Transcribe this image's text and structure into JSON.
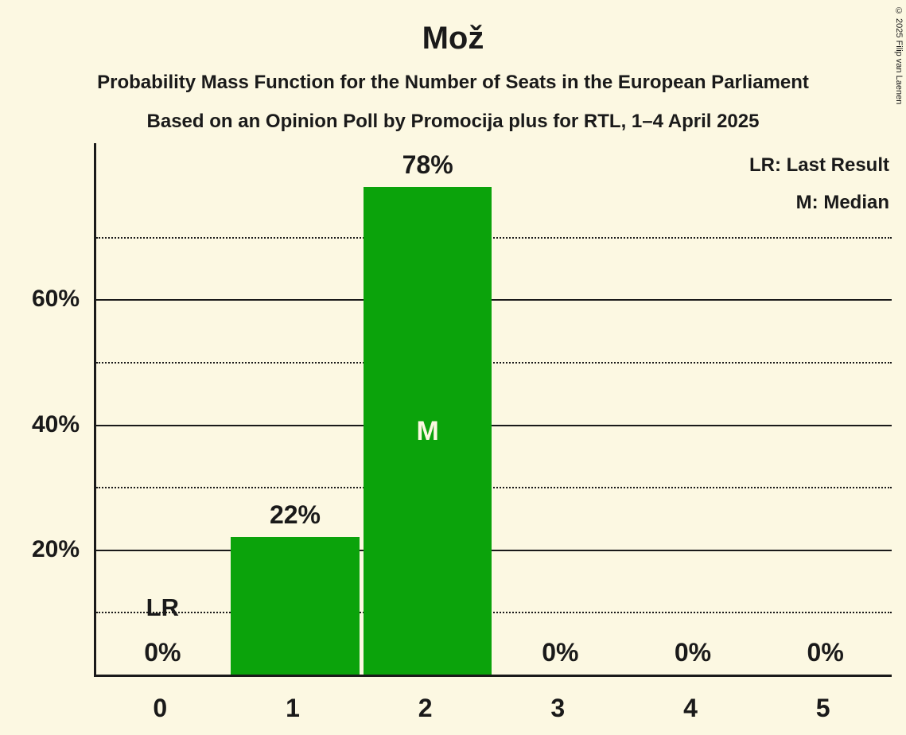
{
  "page": {
    "title": "Mož",
    "subtitle1": "Probability Mass Function for the Number of Seats in the European Parliament",
    "subtitle2": "Based on an Opinion Poll by Promocija plus for RTL, 1–4 April 2025",
    "copyright": "© 2025 Filip van Laenen"
  },
  "legend": {
    "lr": "LR: Last Result",
    "m": "M: Median"
  },
  "colors": {
    "background": "#FCF8E2",
    "bar": "#0BA30B",
    "text": "#1A1A1A"
  },
  "chart_data": {
    "type": "bar",
    "title": "Mož",
    "categories": [
      "0",
      "1",
      "2",
      "3",
      "4",
      "5"
    ],
    "values": [
      0,
      22,
      78,
      0,
      0,
      0
    ],
    "value_labels": [
      "0%",
      "22%",
      "78%",
      "0%",
      "0%",
      "0%"
    ],
    "ylim": [
      0,
      85
    ],
    "grid": "horizontal",
    "solid_gridlines": [
      20,
      40,
      60
    ],
    "dotted_gridlines": [
      10,
      30,
      50,
      70
    ],
    "y_tick_labels": {
      "20": "20%",
      "40": "40%",
      "60": "60%"
    },
    "median_index": 2,
    "median_label": "M",
    "last_result_index": 0,
    "last_result_label": "LR",
    "legend_position": "top-right"
  }
}
